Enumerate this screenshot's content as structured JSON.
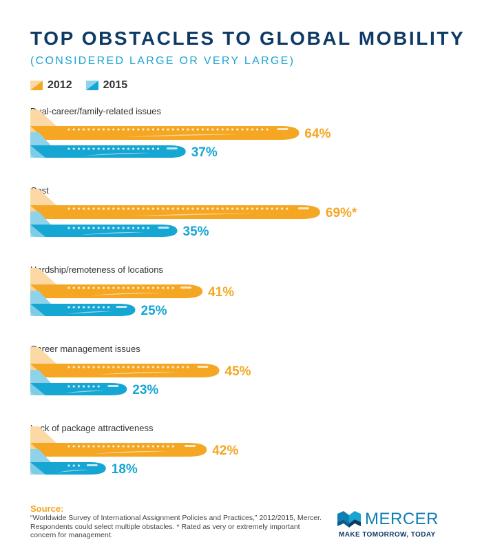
{
  "chart_data": {
    "type": "bar",
    "orientation": "horizontal",
    "title": "TOP OBSTACLES TO GLOBAL MOBILITY",
    "subtitle": "(CONSIDERED LARGE OR VERY LARGE)",
    "categories": [
      "Dual-career/family-related issues",
      "Cost",
      "Hardship/remoteness of locations",
      "Career management issues",
      "Lack of package attractiveness"
    ],
    "series": [
      {
        "name": "2012",
        "color": "#f5a623",
        "light_color": "#fcd9a4",
        "values": [
          64,
          69,
          41,
          45,
          42
        ],
        "labels": [
          "64%",
          "69%*",
          "41%",
          "45%",
          "42%"
        ]
      },
      {
        "name": "2015",
        "color": "#16a6d3",
        "light_color": "#8fd3ea",
        "values": [
          37,
          35,
          25,
          23,
          18
        ],
        "labels": [
          "37%",
          "35%",
          "25%",
          "23%",
          "18%"
        ]
      }
    ],
    "legend": "top-left",
    "grid": false,
    "value_unit": "%"
  },
  "source": {
    "label": "Source:",
    "text": "“Worldwide Survey of International Assignment Policies and Practices,” 2012/2015, Mercer. Respondents could select multiple obstacles. * Rated as very or extremely important concern for management."
  },
  "brand": {
    "name": "MERCER",
    "tagline": "MAKE TOMORROW, TODAY",
    "logo_icon": "mercer-logo-icon",
    "color": "#0e7fb3"
  }
}
